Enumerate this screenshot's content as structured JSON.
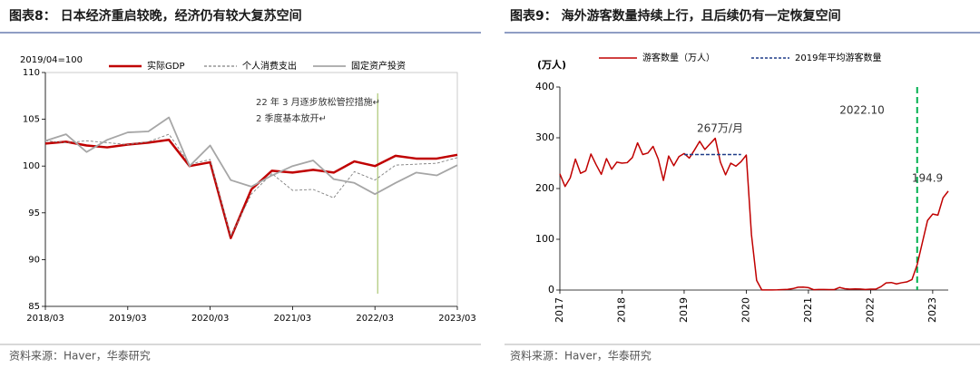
{
  "chart_data": [
    {
      "type": "line",
      "title": "图表8： 日本经济重启较晚，经济仍有较大复苏空间",
      "y_label": "2019/04=100",
      "source": "资料来源：Haver，华泰研究",
      "annotations": [
        "22 年 3 月逐步放松管控措施↵",
        "2 季度基本放开↵"
      ],
      "categories": [
        "2018/03",
        null,
        null,
        null,
        "2019/03",
        null,
        null,
        null,
        "2020/03",
        null,
        null,
        null,
        "2021/03",
        null,
        null,
        null,
        "2022/03",
        null,
        null,
        null,
        "2023/03"
      ],
      "series": [
        {
          "name": "实际GDP",
          "color": "#c00000",
          "values": [
            102.4,
            102.6,
            102.2,
            102.0,
            102.3,
            102.5,
            102.8,
            100.0,
            100.4,
            92.3,
            97.5,
            99.5,
            99.3,
            99.6,
            99.3,
            100.5,
            100.0,
            101.1,
            100.8,
            100.8,
            101.2
          ]
        },
        {
          "name": "个人消费支出",
          "color": "#808080",
          "dashed": true,
          "values": [
            102.7,
            102.5,
            102.7,
            102.5,
            102.3,
            102.6,
            103.4,
            100.2,
            100.7,
            92.5,
            97.0,
            99.2,
            97.4,
            97.5,
            96.6,
            99.4,
            98.5,
            100.1,
            100.2,
            100.3,
            100.9
          ]
        },
        {
          "name": "固定资产投资",
          "color": "#a6a6a6",
          "values": [
            102.7,
            103.4,
            101.5,
            102.8,
            103.6,
            103.7,
            105.2,
            100.0,
            102.2,
            98.5,
            97.8,
            99.0,
            100.0,
            100.6,
            98.6,
            98.2,
            97.0,
            98.2,
            99.3,
            99.0,
            100.1
          ]
        }
      ],
      "ylim": [
        85,
        110
      ],
      "yticks": [
        85,
        90,
        95,
        100,
        105,
        110
      ]
    },
    {
      "type": "line",
      "title": "图表9： 海外游客数量持续上行，且后续仍有一定恢复空间",
      "y_label": "(万人)",
      "source": "资料来源：Haver，华泰研究",
      "annotations": [
        "267万/月",
        "2022.10",
        "194.9"
      ],
      "categories": [
        "2017",
        null,
        null,
        null,
        null,
        null,
        null,
        null,
        null,
        null,
        null,
        null,
        "2018",
        null,
        null,
        null,
        null,
        null,
        null,
        null,
        null,
        null,
        null,
        null,
        "2019",
        null,
        null,
        null,
        null,
        null,
        null,
        null,
        null,
        null,
        null,
        null,
        "2020",
        null,
        null,
        null,
        null,
        null,
        null,
        null,
        null,
        null,
        null,
        null,
        "2021",
        null,
        null,
        null,
        null,
        null,
        null,
        null,
        null,
        null,
        null,
        null,
        "2022",
        null,
        null,
        null,
        null,
        null,
        null,
        null,
        null,
        null,
        null,
        null,
        "2023",
        null,
        null,
        null
      ],
      "series": [
        {
          "name": "游客数量（万人）",
          "color": "#c00000",
          "values": [
            229,
            204,
            221,
            258,
            230,
            235,
            268,
            247,
            228,
            259,
            238,
            252,
            250,
            251,
            261,
            290,
            267,
            270,
            283,
            258,
            216,
            264,
            245,
            263,
            269,
            260,
            276,
            293,
            277,
            288,
            299,
            252,
            227,
            250,
            244,
            253,
            266,
            109,
            19,
            0.3,
            0.2,
            0.3,
            0.4,
            0.9,
            1.4,
            2.8,
            5.6,
            5.9,
            4.7,
            0.7,
            1.2,
            1.1,
            1.0,
            0.9,
            5.1,
            2.6,
            1.8,
            2.2,
            2.1,
            1.2,
            1.7,
            1.7,
            6.6,
            14.0,
            14.8,
            12.0,
            14.4,
            16.0,
            20.7,
            49.9,
            93.5,
            137.0,
            149.7,
            147.5,
            181.8,
            194.9
          ]
        },
        {
          "name": "2019年平均游客数量",
          "color": "#1f3c88",
          "dashed": true,
          "values": [
            null,
            null,
            null,
            null,
            null,
            null,
            null,
            null,
            null,
            null,
            null,
            null,
            null,
            null,
            null,
            null,
            null,
            null,
            null,
            null,
            null,
            null,
            null,
            null,
            267,
            267,
            267,
            267,
            267,
            267,
            267,
            267,
            267,
            267,
            267,
            267,
            null,
            null,
            null,
            null,
            null,
            null,
            null,
            null,
            null,
            null,
            null,
            null,
            null,
            null,
            null,
            null,
            null,
            null,
            null,
            null,
            null,
            null,
            null,
            null,
            null,
            null,
            null,
            null,
            null,
            null,
            null,
            null,
            null,
            null,
            null,
            null,
            null,
            null,
            null,
            null
          ]
        }
      ],
      "ylim": [
        0,
        400
      ],
      "yticks": [
        0,
        100,
        200,
        300,
        400
      ]
    }
  ]
}
